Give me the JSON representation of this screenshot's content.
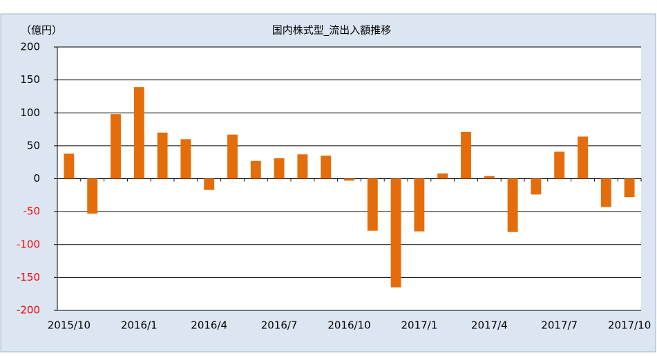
{
  "chart_data": {
    "type": "bar",
    "title": "国内株式型_流出入額推移",
    "y_label": "（億円）",
    "categories": [
      "2015/10",
      null,
      null,
      "2016/1",
      null,
      null,
      "2016/4",
      null,
      null,
      "2016/7",
      null,
      null,
      "2016/10",
      null,
      null,
      "2017/1",
      null,
      null,
      "2017/4",
      null,
      null,
      "2017/7",
      null,
      null,
      "2017/10"
    ],
    "values": [
      38,
      -53,
      98,
      139,
      70,
      60,
      -17,
      67,
      27,
      31,
      37,
      35,
      -3,
      -79,
      -165,
      -80,
      8,
      71,
      4,
      -81,
      -24,
      41,
      64,
      -43,
      -28
    ],
    "color": "#e46c0a",
    "ylim": [
      -200,
      200
    ],
    "yticks": [
      -200,
      -150,
      -100,
      -50,
      0,
      50,
      100,
      150,
      200
    ],
    "grid": true,
    "negative_tick_color": "#ff0000"
  }
}
